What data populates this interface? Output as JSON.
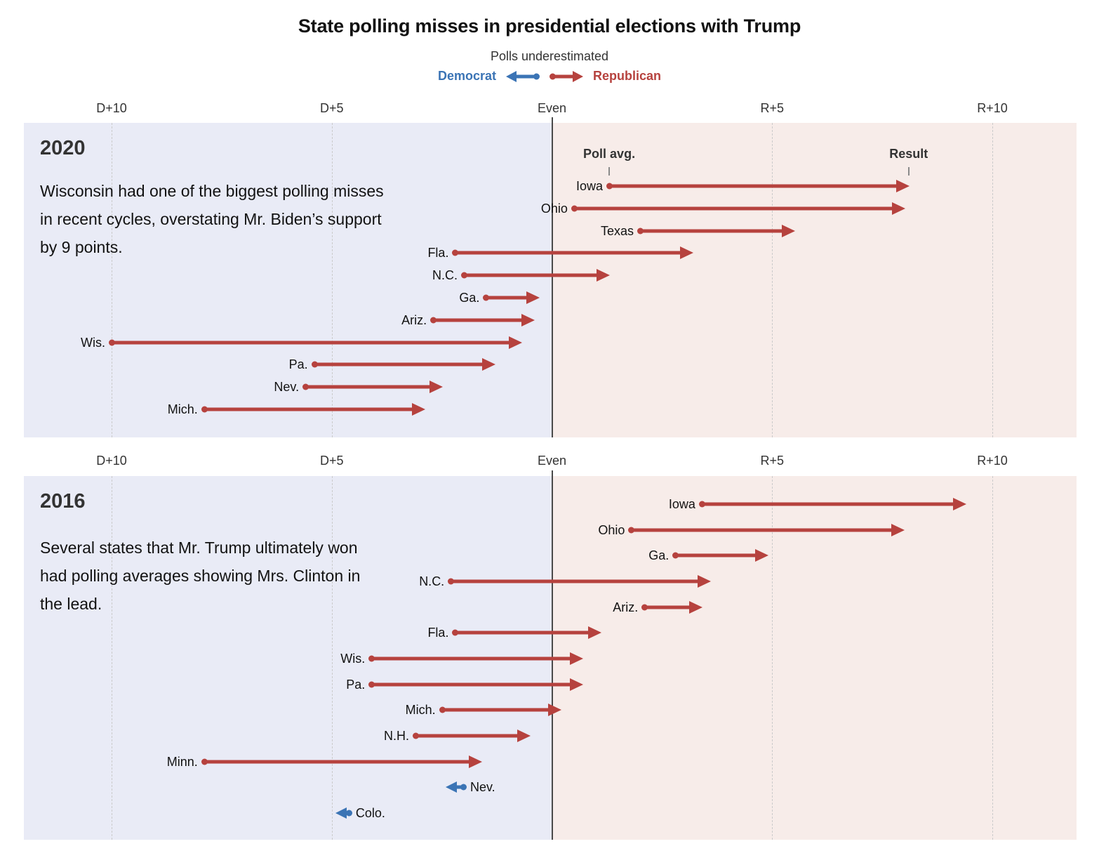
{
  "title": "State polling misses in presidential elections with Trump",
  "legend": {
    "caption": "Polls underestimated",
    "democrat": "Democrat",
    "republican": "Republican"
  },
  "colors": {
    "democrat_blue": "#3b74b5",
    "republican_red": "#b6423e",
    "dem_zone_bg": "#e9ebf6",
    "rep_zone_bg": "#f7ece9",
    "even_line": "#4a4a4a",
    "gridline": "#cbcbcb",
    "text_dark": "#121212",
    "text_gray": "#333333"
  },
  "axis": {
    "units": "margin in percentage points; negative = Democratic lead (D+), positive = Republican lead (R+)",
    "range": [
      -12,
      11.9
    ],
    "ticks": [
      {
        "label": "D+10",
        "value": -10
      },
      {
        "label": "D+5",
        "value": -5
      },
      {
        "label": "Even",
        "value": 0
      },
      {
        "label": "R+5",
        "value": 5
      },
      {
        "label": "R+10",
        "value": 10
      }
    ]
  },
  "chart_data": [
    {
      "type": "arrow-range",
      "year": "2020",
      "annotation": "Wisconsin had one of the biggest polling misses in recent cycles, overstating Mr. Biden’s support by 9 points.",
      "col_headers": {
        "poll": "Poll avg.",
        "result": "Result"
      },
      "rows": [
        {
          "state": "Iowa",
          "poll_avg": 1.3,
          "result": 8.1,
          "underestimated": "Republican"
        },
        {
          "state": "Ohio",
          "poll_avg": 0.5,
          "result": 8.0,
          "underestimated": "Republican"
        },
        {
          "state": "Texas",
          "poll_avg": 2.0,
          "result": 5.5,
          "underestimated": "Republican"
        },
        {
          "state": "Fla.",
          "poll_avg": -2.2,
          "result": 3.2,
          "underestimated": "Republican"
        },
        {
          "state": "N.C.",
          "poll_avg": -2.0,
          "result": 1.3,
          "underestimated": "Republican"
        },
        {
          "state": "Ga.",
          "poll_avg": -1.5,
          "result": -0.3,
          "underestimated": "Republican"
        },
        {
          "state": "Ariz.",
          "poll_avg": -2.7,
          "result": -0.4,
          "underestimated": "Republican"
        },
        {
          "state": "Wis.",
          "poll_avg": -10.0,
          "result": -0.7,
          "underestimated": "Republican"
        },
        {
          "state": "Pa.",
          "poll_avg": -5.4,
          "result": -1.3,
          "underestimated": "Republican"
        },
        {
          "state": "Nev.",
          "poll_avg": -5.6,
          "result": -2.5,
          "underestimated": "Republican"
        },
        {
          "state": "Mich.",
          "poll_avg": -7.9,
          "result": -2.9,
          "underestimated": "Republican"
        }
      ]
    },
    {
      "type": "arrow-range",
      "year": "2016",
      "annotation": "Several states that Mr. Trump ultimately won had polling averages showing Mrs. Clinton in the lead.",
      "rows": [
        {
          "state": "Iowa",
          "poll_avg": 3.4,
          "result": 9.4,
          "underestimated": "Republican"
        },
        {
          "state": "Ohio",
          "poll_avg": 1.8,
          "result": 8.0,
          "underestimated": "Republican"
        },
        {
          "state": "Ga.",
          "poll_avg": 2.8,
          "result": 4.9,
          "underestimated": "Republican"
        },
        {
          "state": "N.C.",
          "poll_avg": -2.3,
          "result": 3.6,
          "underestimated": "Republican"
        },
        {
          "state": "Ariz.",
          "poll_avg": 2.1,
          "result": 3.4,
          "underestimated": "Republican"
        },
        {
          "state": "Fla.",
          "poll_avg": -2.2,
          "result": 1.1,
          "underestimated": "Republican"
        },
        {
          "state": "Wis.",
          "poll_avg": -4.1,
          "result": 0.7,
          "underestimated": "Republican"
        },
        {
          "state": "Pa.",
          "poll_avg": -4.1,
          "result": 0.7,
          "underestimated": "Republican"
        },
        {
          "state": "Mich.",
          "poll_avg": -2.5,
          "result": 0.2,
          "underestimated": "Republican"
        },
        {
          "state": "N.H.",
          "poll_avg": -3.1,
          "result": -0.5,
          "underestimated": "Republican"
        },
        {
          "state": "Minn.",
          "poll_avg": -7.9,
          "result": -1.6,
          "underestimated": "Republican"
        },
        {
          "state": "Nev.",
          "poll_avg": -2.0,
          "result": -2.4,
          "underestimated": "Democrat"
        },
        {
          "state": "Colo.",
          "poll_avg": -4.6,
          "result": -4.9,
          "underestimated": "Democrat"
        }
      ]
    }
  ]
}
